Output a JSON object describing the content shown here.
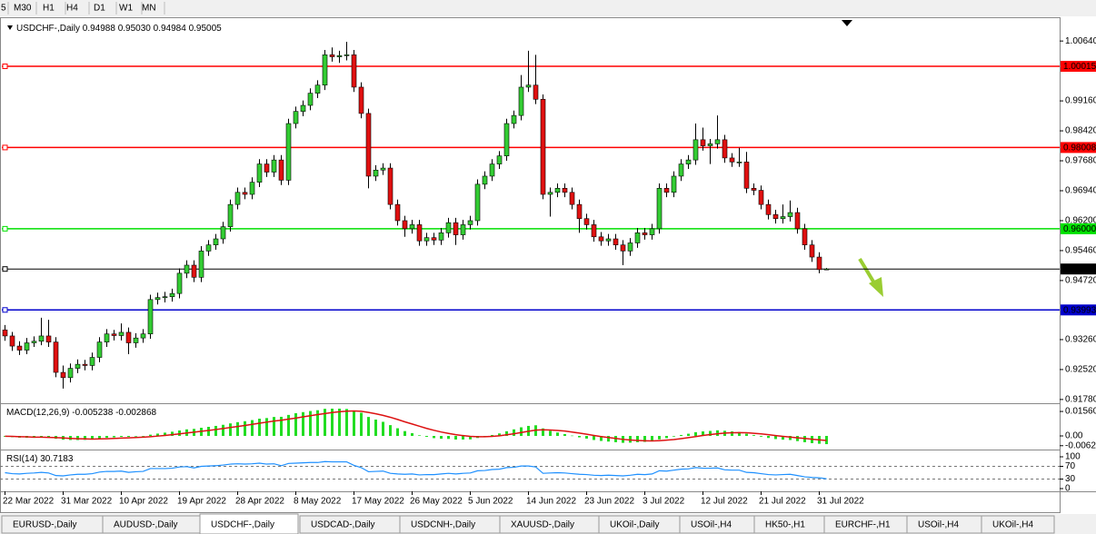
{
  "toolbar": [
    "5",
    "M30",
    "H1",
    "H4",
    "D1",
    "W1",
    "MN"
  ],
  "tabs": [
    "EURUSD-,Daily",
    "AUDUSD-,Daily",
    "USDCHF-,Daily",
    "USDCAD-,Daily",
    "USDCNH-,Daily",
    "XAUUSD-,Daily",
    "UKOil-,Daily",
    "USOil-,H4",
    "HK50-,H1",
    "EURCHF-,H1",
    "USOil-,H4",
    "UKOil-,H4"
  ],
  "active_tab": 2,
  "chart_data": [
    {
      "type": "candlestick",
      "title": "USDCHF-,Daily",
      "header_value_labels": [
        "0.94988",
        "0.95030",
        "0.94984",
        "0.95005"
      ],
      "categories": [
        "22 Mar 2022",
        null,
        null,
        null,
        null,
        null,
        null,
        null,
        "31 Mar 2022",
        null,
        null,
        null,
        null,
        null,
        null,
        null,
        "10 Apr 2022",
        null,
        null,
        null,
        null,
        null,
        null,
        null,
        "19 Apr 2022",
        null,
        null,
        null,
        null,
        null,
        null,
        null,
        "28 Apr 2022",
        null,
        null,
        null,
        null,
        null,
        null,
        null,
        "8 May 2022",
        null,
        null,
        null,
        null,
        null,
        null,
        null,
        "17 May 2022",
        null,
        null,
        null,
        null,
        null,
        null,
        null,
        "26 May 2022",
        null,
        null,
        null,
        null,
        null,
        null,
        null,
        "5 Jun 2022",
        null,
        null,
        null,
        null,
        null,
        null,
        null,
        "14 Jun 2022",
        null,
        null,
        null,
        null,
        null,
        null,
        null,
        "23 Jun 2022",
        null,
        null,
        null,
        null,
        null,
        null,
        null,
        "3 Jul 2022",
        null,
        null,
        null,
        null,
        null,
        null,
        null,
        "12 Jul 2022",
        null,
        null,
        null,
        null,
        null,
        null,
        null,
        "21 Jul 2022",
        null,
        null,
        null,
        null,
        null,
        null,
        null,
        "31 Jul 2022",
        null
      ],
      "ohlc": [
        [
          0.935,
          0.9362,
          0.9323,
          0.9335
        ],
        [
          0.9335,
          0.9345,
          0.9298,
          0.931
        ],
        [
          0.931,
          0.9322,
          0.9288,
          0.93
        ],
        [
          0.93,
          0.933,
          0.929,
          0.9318
        ],
        [
          0.9318,
          0.9334,
          0.9308,
          0.9322
        ],
        [
          0.9322,
          0.938,
          0.9312,
          0.9335
        ],
        [
          0.9335,
          0.9375,
          0.9308,
          0.932
        ],
        [
          0.932,
          0.9332,
          0.9233,
          0.9245
        ],
        [
          0.9245,
          0.9262,
          0.9205,
          0.9232
        ],
        [
          0.9232,
          0.9267,
          0.922,
          0.9255
        ],
        [
          0.9255,
          0.9277,
          0.9243,
          0.9265
        ],
        [
          0.9265,
          0.9276,
          0.925,
          0.9262
        ],
        [
          0.9262,
          0.9294,
          0.925,
          0.9282
        ],
        [
          0.9282,
          0.9332,
          0.927,
          0.932
        ],
        [
          0.932,
          0.9352,
          0.9308,
          0.934
        ],
        [
          0.934,
          0.935,
          0.9324,
          0.9336
        ],
        [
          0.9336,
          0.9366,
          0.9324,
          0.9344
        ],
        [
          0.9344,
          0.9356,
          0.929,
          0.9318
        ],
        [
          0.9318,
          0.9342,
          0.9306,
          0.933
        ],
        [
          0.933,
          0.9352,
          0.9318,
          0.934
        ],
        [
          0.934,
          0.9437,
          0.9328,
          0.9425
        ],
        [
          0.9425,
          0.9442,
          0.9413,
          0.943
        ],
        [
          0.943,
          0.9444,
          0.9418,
          0.9432
        ],
        [
          0.9432,
          0.9452,
          0.942,
          0.944
        ],
        [
          0.944,
          0.9502,
          0.9428,
          0.949
        ],
        [
          0.949,
          0.9522,
          0.9478,
          0.951
        ],
        [
          0.951,
          0.9522,
          0.9468,
          0.948
        ],
        [
          0.948,
          0.9557,
          0.9468,
          0.9545
        ],
        [
          0.9545,
          0.9572,
          0.9533,
          0.956
        ],
        [
          0.956,
          0.9587,
          0.9548,
          0.9575
        ],
        [
          0.9575,
          0.9617,
          0.9563,
          0.9605
        ],
        [
          0.9605,
          0.9672,
          0.9593,
          0.966
        ],
        [
          0.966,
          0.9702,
          0.9648,
          0.969
        ],
        [
          0.969,
          0.9702,
          0.9673,
          0.9685
        ],
        [
          0.9685,
          0.9727,
          0.9673,
          0.9715
        ],
        [
          0.9715,
          0.9772,
          0.9703,
          0.976
        ],
        [
          0.976,
          0.9772,
          0.9728,
          0.974
        ],
        [
          0.974,
          0.9782,
          0.9728,
          0.977
        ],
        [
          0.977,
          0.9782,
          0.9708,
          0.972
        ],
        [
          0.972,
          0.9872,
          0.9708,
          0.986
        ],
        [
          0.986,
          0.9902,
          0.9848,
          0.989
        ],
        [
          0.989,
          0.9917,
          0.9878,
          0.9905
        ],
        [
          0.9905,
          0.9947,
          0.9893,
          0.9935
        ],
        [
          0.9935,
          0.9967,
          0.9923,
          0.9955
        ],
        [
          0.9955,
          1.0042,
          0.9943,
          1.003
        ],
        [
          1.003,
          1.0048,
          1.0013,
          1.0025
        ],
        [
          1.0025,
          1.004,
          1.001,
          1.0028
        ],
        [
          1.0028,
          1.0062,
          1.0016,
          1.003
        ],
        [
          1.003,
          1.0042,
          0.9938,
          0.995
        ],
        [
          0.995,
          0.9962,
          0.9873,
          0.9885
        ],
        [
          0.9885,
          0.9897,
          0.97,
          0.973
        ],
        [
          0.973,
          0.9757,
          0.9718,
          0.9745
        ],
        [
          0.9745,
          0.9762,
          0.9733,
          0.975
        ],
        [
          0.975,
          0.9762,
          0.9648,
          0.966
        ],
        [
          0.966,
          0.9672,
          0.9608,
          0.962
        ],
        [
          0.962,
          0.9632,
          0.958,
          0.96
        ],
        [
          0.96,
          0.9622,
          0.9588,
          0.961
        ],
        [
          0.961,
          0.9622,
          0.9558,
          0.957
        ],
        [
          0.957,
          0.959,
          0.9558,
          0.9578
        ],
        [
          0.9578,
          0.959,
          0.956,
          0.9572
        ],
        [
          0.9572,
          0.9602,
          0.956,
          0.959
        ],
        [
          0.959,
          0.9627,
          0.9578,
          0.9615
        ],
        [
          0.9615,
          0.9627,
          0.956,
          0.9585
        ],
        [
          0.9585,
          0.9622,
          0.9573,
          0.961
        ],
        [
          0.961,
          0.9632,
          0.9598,
          0.962
        ],
        [
          0.962,
          0.9722,
          0.9608,
          0.971
        ],
        [
          0.971,
          0.9742,
          0.9698,
          0.973
        ],
        [
          0.973,
          0.9772,
          0.9718,
          0.976
        ],
        [
          0.976,
          0.9792,
          0.9748,
          0.978
        ],
        [
          0.978,
          0.9872,
          0.9768,
          0.986
        ],
        [
          0.986,
          0.9892,
          0.9848,
          0.988
        ],
        [
          0.988,
          0.998,
          0.9868,
          0.995
        ],
        [
          0.995,
          1.004,
          0.9938,
          0.9955
        ],
        [
          0.9955,
          1.003,
          0.9908,
          0.992
        ],
        [
          0.992,
          0.9932,
          0.9673,
          0.9685
        ],
        [
          0.9685,
          0.9702,
          0.963,
          0.969
        ],
        [
          0.969,
          0.9712,
          0.9678,
          0.97
        ],
        [
          0.97,
          0.9712,
          0.9678,
          0.969
        ],
        [
          0.969,
          0.9702,
          0.9648,
          0.966
        ],
        [
          0.966,
          0.9672,
          0.959,
          0.9625
        ],
        [
          0.9625,
          0.9637,
          0.9598,
          0.961
        ],
        [
          0.961,
          0.9622,
          0.9568,
          0.958
        ],
        [
          0.958,
          0.9592,
          0.9558,
          0.957
        ],
        [
          0.957,
          0.9587,
          0.9558,
          0.9575
        ],
        [
          0.9575,
          0.9587,
          0.9548,
          0.956
        ],
        [
          0.956,
          0.9572,
          0.951,
          0.9545
        ],
        [
          0.9545,
          0.9577,
          0.9533,
          0.9565
        ],
        [
          0.9565,
          0.9602,
          0.9553,
          0.959
        ],
        [
          0.959,
          0.9602,
          0.9573,
          0.9585
        ],
        [
          0.9585,
          0.9612,
          0.9573,
          0.96
        ],
        [
          0.96,
          0.9712,
          0.9588,
          0.97
        ],
        [
          0.97,
          0.9712,
          0.9678,
          0.969
        ],
        [
          0.969,
          0.9742,
          0.9678,
          0.973
        ],
        [
          0.973,
          0.9772,
          0.9718,
          0.976
        ],
        [
          0.976,
          0.9782,
          0.9748,
          0.977
        ],
        [
          0.977,
          0.986,
          0.9758,
          0.982
        ],
        [
          0.982,
          0.985,
          0.9793,
          0.9805
        ],
        [
          0.9805,
          0.9822,
          0.976,
          0.981
        ],
        [
          0.981,
          0.988,
          0.9798,
          0.982
        ],
        [
          0.982,
          0.9832,
          0.9763,
          0.9775
        ],
        [
          0.9775,
          0.9787,
          0.9753,
          0.9765
        ],
        [
          0.9765,
          0.98,
          0.9753,
          0.9765
        ],
        [
          0.9765,
          0.979,
          0.9688,
          0.97
        ],
        [
          0.97,
          0.9712,
          0.9683,
          0.9695
        ],
        [
          0.9695,
          0.9707,
          0.9648,
          0.966
        ],
        [
          0.966,
          0.9672,
          0.9623,
          0.9635
        ],
        [
          0.9635,
          0.9647,
          0.9613,
          0.9625
        ],
        [
          0.9625,
          0.966,
          0.9613,
          0.963
        ],
        [
          0.963,
          0.967,
          0.9618,
          0.964
        ],
        [
          0.964,
          0.9652,
          0.9588,
          0.96
        ],
        [
          0.96,
          0.9612,
          0.9548,
          0.956
        ],
        [
          0.956,
          0.9572,
          0.9518,
          0.953
        ],
        [
          0.953,
          0.9542,
          0.949,
          0.9499
        ],
        [
          0.94988,
          0.9503,
          0.94984,
          0.95005
        ]
      ],
      "up_color": "#33cc33",
      "down_color": "#e01010",
      "wick_color": "#000000",
      "ylim": [
        0.9171,
        1.0116
      ],
      "yticks": [
        {
          "value": 1.0064,
          "label": "1.00640"
        },
        {
          "value": 0.9916,
          "label": "0.99160"
        },
        {
          "value": 0.9842,
          "label": "0.98420"
        },
        {
          "value": 0.9768,
          "label": "0.97680"
        },
        {
          "value": 0.9694,
          "label": "0.96940"
        },
        {
          "value": 0.962,
          "label": "0.96200"
        },
        {
          "value": 0.9546,
          "label": "0.95460"
        },
        {
          "value": 0.9472,
          "label": "0.94720"
        },
        {
          "value": 0.9326,
          "label": "0.93260"
        },
        {
          "value": 0.9252,
          "label": "0.92520"
        },
        {
          "value": 0.9178,
          "label": "0.91780"
        }
      ],
      "hlines": [
        {
          "value": 1.00015,
          "color": "#ff0000"
        },
        {
          "value": 0.98008,
          "color": "#ff0000"
        },
        {
          "value": 0.96,
          "label": "0.96000",
          "color": "#00e000"
        },
        {
          "value": 0.93993,
          "color": "#0000cc"
        },
        {
          "value": 0.95005,
          "color": "#000000"
        }
      ]
    },
    {
      "type": "macd",
      "title": "MACD(12,26,9)",
      "histogram": [
        -0.0005,
        -0.0008,
        -0.0011,
        -0.0012,
        -0.0012,
        -0.001,
        -0.0011,
        -0.0018,
        -0.0024,
        -0.0026,
        -0.0026,
        -0.0025,
        -0.0022,
        -0.0017,
        -0.0012,
        -0.0009,
        -0.0006,
        -0.0006,
        -0.0004,
        -0.0002,
        0.0008,
        0.0015,
        0.0021,
        0.0027,
        0.0035,
        0.0042,
        0.0045,
        0.0052,
        0.0058,
        0.0064,
        0.0071,
        0.008,
        0.0088,
        0.0094,
        0.0101,
        0.011,
        0.0114,
        0.0121,
        0.0122,
        0.0134,
        0.0145,
        0.0152,
        0.0159,
        0.0164,
        0.0173,
        0.0174,
        0.0174,
        0.0172,
        0.0162,
        0.0148,
        0.0121,
        0.0104,
        0.009,
        0.0069,
        0.0049,
        0.0031,
        0.0018,
        0.0004,
        -0.0006,
        -0.0014,
        -0.0018,
        -0.0019,
        -0.0023,
        -0.0023,
        -0.0022,
        -0.0013,
        -0.0004,
        0.0006,
        0.0016,
        0.003,
        0.0042,
        0.0055,
        0.0064,
        0.0068,
        0.0048,
        0.0033,
        0.0022,
        0.0012,
        0.0002,
        -0.0009,
        -0.0017,
        -0.0026,
        -0.0032,
        -0.0036,
        -0.004,
        -0.0044,
        -0.0043,
        -0.004,
        -0.0038,
        -0.0035,
        -0.0022,
        -0.0014,
        -0.0004,
        0.0006,
        0.0014,
        0.0024,
        0.0029,
        0.0032,
        0.0036,
        0.0033,
        0.0029,
        0.0025,
        0.0014,
        0.0005,
        -0.0005,
        -0.0013,
        -0.002,
        -0.0024,
        -0.0026,
        -0.0033,
        -0.004,
        -0.0046,
        -0.005,
        -0.005238
      ],
      "signal": [
        -0.0002,
        -0.0003,
        -0.0005,
        -0.0006,
        -0.0008,
        -0.0008,
        -0.0009,
        -0.0011,
        -0.0013,
        -0.0016,
        -0.0018,
        -0.0019,
        -0.002,
        -0.0019,
        -0.0018,
        -0.0016,
        -0.0014,
        -0.0012,
        -0.001,
        -0.0008,
        -0.0005,
        -0.0001,
        0.0003,
        0.0008,
        0.0013,
        0.0019,
        0.0024,
        0.003,
        0.0035,
        0.0041,
        0.0047,
        0.0054,
        0.006,
        0.0067,
        0.0074,
        0.0081,
        0.0088,
        0.0095,
        0.01,
        0.0107,
        0.0114,
        0.0122,
        0.0129,
        0.0136,
        0.0143,
        0.0149,
        0.0154,
        0.0158,
        0.0159,
        0.0157,
        0.015,
        0.0141,
        0.0131,
        0.0119,
        0.0105,
        0.009,
        0.0076,
        0.0062,
        0.0048,
        0.0036,
        0.0025,
        0.0016,
        0.0008,
        0.0002,
        -0.0003,
        -0.0005,
        -0.0005,
        -0.0003,
        0.0001,
        0.0007,
        0.0014,
        0.0022,
        0.003,
        0.0037,
        0.0039,
        0.0038,
        0.0035,
        0.0031,
        0.0025,
        0.0018,
        0.0011,
        0.0003,
        -0.0004,
        -0.001,
        -0.0016,
        -0.0022,
        -0.0026,
        -0.0029,
        -0.0031,
        -0.0032,
        -0.003,
        -0.0027,
        -0.0023,
        -0.0017,
        -0.0011,
        -0.0004,
        0.0003,
        0.0009,
        0.0014,
        0.0018,
        0.002,
        0.0021,
        0.002,
        0.0017,
        0.0013,
        0.0008,
        0.0002,
        -0.0003,
        -0.0007,
        -0.0012,
        -0.0016,
        -0.0021,
        -0.0025,
        -0.002868
      ],
      "histogram_color": "#22dd22",
      "signal_color": "#dd1111",
      "ylim": [
        -0.0081,
        0.0197
      ],
      "yticks": [
        0.015605,
        {
          "value": 0,
          "label": "0.00"
        },
        -0.00623
      ]
    },
    {
      "type": "line",
      "title": "RSI(14)",
      "values": [
        50,
        47,
        46,
        48,
        49,
        51,
        49,
        41,
        40,
        43,
        45,
        45,
        47,
        52,
        54,
        54,
        55,
        51,
        53,
        54,
        63,
        63,
        63,
        64,
        68,
        69,
        65,
        70,
        71,
        72,
        74,
        77,
        78,
        77,
        78,
        80,
        77,
        78,
        72,
        79,
        80,
        81,
        82,
        82,
        85,
        84,
        84,
        84,
        73,
        66,
        53,
        54,
        55,
        48,
        46,
        45,
        46,
        43,
        44,
        44,
        46,
        48,
        46,
        48,
        49,
        56,
        57,
        60,
        61,
        66,
        67,
        71,
        71,
        68,
        48,
        49,
        50,
        49,
        47,
        45,
        44,
        42,
        41,
        42,
        41,
        40,
        42,
        45,
        44,
        46,
        56,
        55,
        58,
        61,
        62,
        66,
        64,
        64,
        65,
        59,
        58,
        58,
        51,
        50,
        47,
        44,
        43,
        44,
        45,
        41,
        37,
        35,
        34,
        30.7183
      ],
      "color": "#1e90ff",
      "ylim": [
        -8.6,
        117.1
      ],
      "yticks": [
        100,
        70,
        30,
        0
      ],
      "levels": [
        70,
        30
      ]
    }
  ]
}
